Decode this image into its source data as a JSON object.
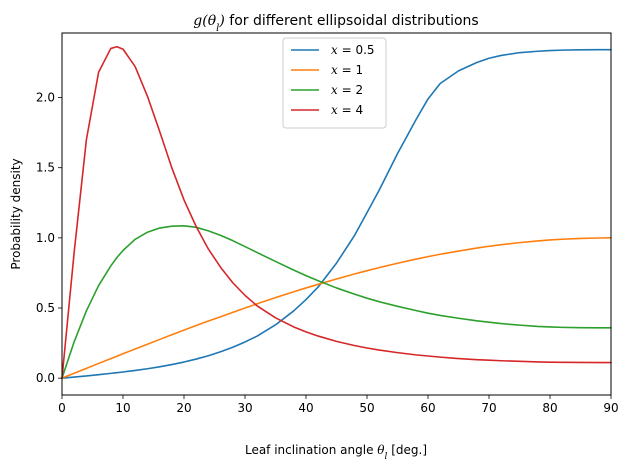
{
  "chart_data": {
    "type": "line",
    "title": "g(θ_l) for different ellipsoidal distributions",
    "title_math": "g(θ",
    "title_sub": "l",
    "title_math_close": ")",
    "title_rest": " for different ellipsoidal distributions",
    "xlabel_text": "Leaf inclination angle ",
    "xlabel_math": "θ",
    "xlabel_sub": "l",
    "xlabel_rest": " [deg.]",
    "ylabel": "Probability density",
    "xlim": [
      0,
      90
    ],
    "ylim": [
      -0.12,
      2.46
    ],
    "xticks": [
      0,
      10,
      20,
      30,
      40,
      50,
      60,
      70,
      80,
      90
    ],
    "xtick_labels": [
      "0",
      "10",
      "20",
      "30",
      "40",
      "50",
      "60",
      "70",
      "80",
      "90"
    ],
    "yticks": [
      0.0,
      0.5,
      1.0,
      1.5,
      2.0
    ],
    "ytick_labels": [
      "0.0",
      "0.5",
      "1.0",
      "1.5",
      "2.0"
    ],
    "grid": false,
    "legend_position": "top-center",
    "x": [
      0,
      2,
      4,
      6,
      8,
      9,
      10,
      12,
      14,
      16,
      18,
      20,
      22,
      24,
      26,
      28,
      30,
      32,
      35,
      38,
      40,
      42,
      45,
      48,
      50,
      52,
      55,
      58,
      60,
      62,
      65,
      68,
      70,
      72,
      75,
      78,
      80,
      82,
      85,
      88,
      90
    ],
    "series": [
      {
        "name": "x = 0.5",
        "name_math": "x",
        "name_val": " = 0.5",
        "color": "#1f77b4",
        "values": [
          0.0,
          0.008,
          0.016,
          0.025,
          0.034,
          0.039,
          0.044,
          0.055,
          0.067,
          0.081,
          0.097,
          0.115,
          0.136,
          0.16,
          0.188,
          0.22,
          0.258,
          0.3,
          0.38,
          0.48,
          0.56,
          0.65,
          0.82,
          1.02,
          1.18,
          1.34,
          1.6,
          1.84,
          1.99,
          2.1,
          2.19,
          2.25,
          2.28,
          2.3,
          2.32,
          2.33,
          2.335,
          2.338,
          2.34,
          2.341,
          2.341
        ]
      },
      {
        "name": "x = 1",
        "name_math": "x",
        "name_val": " = 1",
        "color": "#ff7f0e",
        "values": [
          0.0,
          0.035,
          0.07,
          0.105,
          0.139,
          0.156,
          0.174,
          0.208,
          0.242,
          0.276,
          0.309,
          0.342,
          0.375,
          0.407,
          0.438,
          0.469,
          0.5,
          0.53,
          0.574,
          0.616,
          0.643,
          0.669,
          0.707,
          0.743,
          0.766,
          0.788,
          0.819,
          0.848,
          0.866,
          0.883,
          0.906,
          0.927,
          0.94,
          0.951,
          0.966,
          0.978,
          0.985,
          0.99,
          0.996,
          0.999,
          1.0
        ]
      },
      {
        "name": "x = 2",
        "name_math": "x",
        "name_val": " = 2",
        "color": "#2ca02c",
        "values": [
          0.0,
          0.26,
          0.48,
          0.66,
          0.8,
          0.86,
          0.91,
          0.99,
          1.04,
          1.07,
          1.083,
          1.086,
          1.075,
          1.05,
          1.018,
          0.98,
          0.938,
          0.895,
          0.832,
          0.77,
          0.731,
          0.694,
          0.643,
          0.598,
          0.57,
          0.545,
          0.512,
          0.482,
          0.463,
          0.447,
          0.427,
          0.409,
          0.399,
          0.389,
          0.378,
          0.369,
          0.365,
          0.362,
          0.36,
          0.359,
          0.359
        ]
      },
      {
        "name": "x = 4",
        "name_math": "x",
        "name_val": " = 4",
        "color": "#d62728",
        "values": [
          0.0,
          0.9,
          1.7,
          2.18,
          2.35,
          2.362,
          2.345,
          2.22,
          2.01,
          1.76,
          1.5,
          1.27,
          1.08,
          0.92,
          0.79,
          0.68,
          0.59,
          0.515,
          0.43,
          0.365,
          0.33,
          0.3,
          0.262,
          0.232,
          0.215,
          0.2,
          0.182,
          0.166,
          0.158,
          0.15,
          0.14,
          0.132,
          0.128,
          0.124,
          0.12,
          0.116,
          0.114,
          0.113,
          0.112,
          0.111,
          0.111
        ]
      }
    ]
  }
}
